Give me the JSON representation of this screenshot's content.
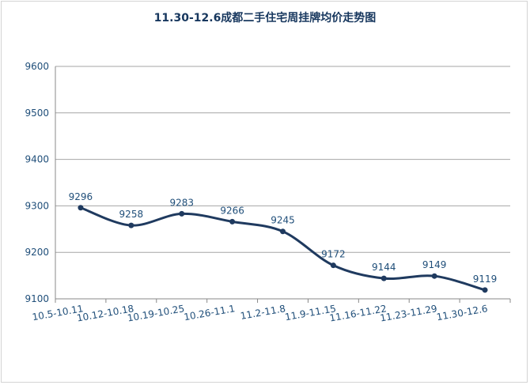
{
  "chart_data": {
    "type": "line",
    "title": "11.30-12.6成都二手住宅周挂牌均价走势图",
    "categories": [
      "10.5-10.11",
      "10.12-10.18",
      "10.19-10.25",
      "10.26-11.1",
      "11.2-11.8",
      "11.9-11.15",
      "11.16-11.22",
      "11.23-11.29",
      "11.30-12.6"
    ],
    "values": [
      9296,
      9258,
      9283,
      9266,
      9245,
      9172,
      9144,
      9149,
      9119
    ],
    "data_labels": [
      "9296",
      "9258",
      "9283",
      "9266",
      "9245",
      "9172",
      "9144",
      "9149",
      "9119"
    ],
    "y_ticks": [
      "9100",
      "9200",
      "9300",
      "9400",
      "9500",
      "9600"
    ],
    "ylim": [
      9100,
      9600
    ],
    "grid": true,
    "line_color": "#1f3a5f",
    "text_color": "#1f4e79"
  }
}
